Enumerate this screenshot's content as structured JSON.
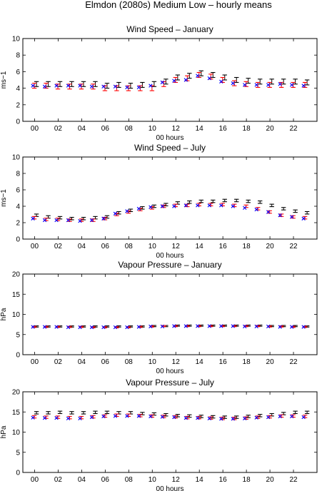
{
  "figure": {
    "title": "Elmdon (2080s) Medium Low – hourly means"
  },
  "colors": {
    "black": "#000000",
    "red": "#ff0000",
    "blue": "#0000ff",
    "purple": "#6a0dad"
  },
  "chart_data": [
    {
      "type": "scatter",
      "title": "Wind Speed – January",
      "xlabel": "00 hours",
      "ylabel": "ms−1",
      "ylim": [
        0,
        10
      ],
      "yticks": [
        0,
        2,
        4,
        6,
        8,
        10
      ],
      "xlim": [
        -1,
        24
      ],
      "xticks": [
        0,
        2,
        4,
        6,
        8,
        10,
        12,
        14,
        16,
        18,
        20,
        22
      ],
      "xticklabels": [
        "00",
        "02",
        "04",
        "06",
        "08",
        "10",
        "12",
        "14",
        "16",
        "18",
        "20",
        "22"
      ],
      "x": [
        0,
        1,
        2,
        3,
        4,
        5,
        6,
        7,
        8,
        9,
        10,
        11,
        12,
        13,
        14,
        15,
        16,
        17,
        18,
        19,
        20,
        21,
        22,
        23
      ],
      "grid": false,
      "series": [
        {
          "marker": "errorbar",
          "color": "#000000",
          "values": [
            4.5,
            4.5,
            4.5,
            4.5,
            4.5,
            4.5,
            4.3,
            4.4,
            4.3,
            4.4,
            4.5,
            4.8,
            5.3,
            5.5,
            5.8,
            5.6,
            5.3,
            5.0,
            4.9,
            4.8,
            4.8,
            4.8,
            4.8,
            4.7
          ],
          "error": [
            0.3,
            0.3,
            0.3,
            0.3,
            0.3,
            0.3,
            0.3,
            0.3,
            0.3,
            0.3,
            0.3,
            0.3,
            0.3,
            0.3,
            0.3,
            0.3,
            0.3,
            0.3,
            0.3,
            0.3,
            0.3,
            0.3,
            0.3,
            0.3
          ]
        },
        {
          "marker": "errorbar",
          "color": "#ff0000",
          "values": [
            4.3,
            4.3,
            4.2,
            4.2,
            4.2,
            4.2,
            4.0,
            4.0,
            4.0,
            4.0,
            4.0,
            4.5,
            5.0,
            5.2,
            5.6,
            5.4,
            5.0,
            4.6,
            4.5,
            4.4,
            4.4,
            4.4,
            4.4,
            4.4
          ],
          "error": [
            0.3,
            0.3,
            0.3,
            0.3,
            0.3,
            0.3,
            0.3,
            0.3,
            0.3,
            0.3,
            0.3,
            0.3,
            0.3,
            0.3,
            0.3,
            0.3,
            0.3,
            0.3,
            0.3,
            0.3,
            0.3,
            0.3,
            0.3,
            0.3
          ]
        },
        {
          "marker": "x",
          "color": "#0000ff",
          "values": [
            4.3,
            4.2,
            4.3,
            4.3,
            4.3,
            4.2,
            4.2,
            4.2,
            4.1,
            4.1,
            4.3,
            4.7,
            4.9,
            5.0,
            5.5,
            5.2,
            4.8,
            4.6,
            4.4,
            4.4,
            4.4,
            4.5,
            4.4,
            4.3
          ]
        }
      ]
    },
    {
      "type": "scatter",
      "title": "Wind Speed – July",
      "xlabel": "00 hours",
      "ylabel": "ms−1",
      "ylim": [
        0,
        10
      ],
      "yticks": [
        0,
        2,
        4,
        6,
        8,
        10
      ],
      "xlim": [
        -1,
        24
      ],
      "xticks": [
        0,
        2,
        4,
        6,
        8,
        10,
        12,
        14,
        16,
        18,
        20,
        22
      ],
      "xticklabels": [
        "00",
        "02",
        "04",
        "06",
        "08",
        "10",
        "12",
        "14",
        "16",
        "18",
        "20",
        "22"
      ],
      "x": [
        0,
        1,
        2,
        3,
        4,
        5,
        6,
        7,
        8,
        9,
        10,
        11,
        12,
        13,
        14,
        15,
        16,
        17,
        18,
        19,
        20,
        21,
        22,
        23
      ],
      "grid": false,
      "series": [
        {
          "marker": "errorbar",
          "color": "#000000",
          "values": [
            2.9,
            2.7,
            2.6,
            2.5,
            2.5,
            2.6,
            2.7,
            3.2,
            3.5,
            3.8,
            4.0,
            4.2,
            4.4,
            4.5,
            4.6,
            4.6,
            4.7,
            4.7,
            4.6,
            4.5,
            4.1,
            3.7,
            3.4,
            3.2
          ],
          "error": [
            0.15,
            0.15,
            0.15,
            0.15,
            0.15,
            0.15,
            0.15,
            0.15,
            0.15,
            0.15,
            0.15,
            0.15,
            0.15,
            0.15,
            0.15,
            0.15,
            0.15,
            0.15,
            0.15,
            0.15,
            0.15,
            0.15,
            0.15,
            0.15
          ]
        },
        {
          "marker": "errorbar",
          "color": "#ff0000",
          "values": [
            2.6,
            2.4,
            2.4,
            2.3,
            2.3,
            2.3,
            2.5,
            3.0,
            3.3,
            3.6,
            3.8,
            4.0,
            4.1,
            4.1,
            4.2,
            4.2,
            4.2,
            4.1,
            4.0,
            3.7,
            3.3,
            2.9,
            2.7,
            2.6
          ],
          "error": [
            0.15,
            0.15,
            0.15,
            0.15,
            0.15,
            0.15,
            0.15,
            0.15,
            0.15,
            0.15,
            0.15,
            0.15,
            0.15,
            0.15,
            0.15,
            0.15,
            0.15,
            0.15,
            0.15,
            0.15,
            0.15,
            0.15,
            0.15,
            0.15
          ]
        },
        {
          "marker": "x",
          "color": "#0000ff",
          "values": [
            2.5,
            2.3,
            2.3,
            2.3,
            2.2,
            2.3,
            2.5,
            3.1,
            3.4,
            3.7,
            3.9,
            4.0,
            4.0,
            4.1,
            4.1,
            4.1,
            4.1,
            4.0,
            3.8,
            3.6,
            3.3,
            2.9,
            2.7,
            2.5
          ]
        }
      ]
    },
    {
      "type": "scatter",
      "title": "Vapour Pressure – January",
      "xlabel": "00 hours",
      "ylabel": "hPa",
      "ylim": [
        0,
        20
      ],
      "yticks": [
        0,
        5,
        10,
        15,
        20
      ],
      "xlim": [
        -1,
        24
      ],
      "xticks": [
        0,
        2,
        4,
        6,
        8,
        10,
        12,
        14,
        16,
        18,
        20,
        22
      ],
      "xticklabels": [
        "00",
        "02",
        "04",
        "06",
        "08",
        "10",
        "12",
        "14",
        "16",
        "18",
        "20",
        "22"
      ],
      "x": [
        0,
        1,
        2,
        3,
        4,
        5,
        6,
        7,
        8,
        9,
        10,
        11,
        12,
        13,
        14,
        15,
        16,
        17,
        18,
        19,
        20,
        21,
        22,
        23
      ],
      "grid": false,
      "series": [
        {
          "marker": "errorbar",
          "color": "#000000",
          "values": [
            7.0,
            7.0,
            7.0,
            7.0,
            7.0,
            7.0,
            7.0,
            7.0,
            7.0,
            7.0,
            7.1,
            7.1,
            7.2,
            7.2,
            7.2,
            7.2,
            7.2,
            7.2,
            7.2,
            7.2,
            7.1,
            7.1,
            7.1,
            7.0
          ],
          "error": [
            0.15,
            0.15,
            0.15,
            0.15,
            0.15,
            0.15,
            0.15,
            0.15,
            0.15,
            0.15,
            0.15,
            0.15,
            0.15,
            0.15,
            0.15,
            0.15,
            0.15,
            0.15,
            0.15,
            0.15,
            0.15,
            0.15,
            0.15,
            0.15
          ]
        },
        {
          "marker": "errorbar",
          "color": "#ff0000",
          "values": [
            6.9,
            6.9,
            6.9,
            6.9,
            6.9,
            6.8,
            6.8,
            6.8,
            6.8,
            6.9,
            7.0,
            7.1,
            7.1,
            7.1,
            7.1,
            7.1,
            7.1,
            7.1,
            7.1,
            7.1,
            7.0,
            7.0,
            6.9,
            6.9
          ],
          "error": [
            0.15,
            0.15,
            0.15,
            0.15,
            0.15,
            0.15,
            0.15,
            0.15,
            0.15,
            0.15,
            0.15,
            0.15,
            0.15,
            0.15,
            0.15,
            0.15,
            0.15,
            0.15,
            0.15,
            0.15,
            0.15,
            0.15,
            0.15,
            0.15
          ]
        },
        {
          "marker": "x",
          "color": "#0000ff",
          "values": [
            6.9,
            6.9,
            6.9,
            6.8,
            6.8,
            6.8,
            6.8,
            6.8,
            6.8,
            6.9,
            7.0,
            7.0,
            7.1,
            7.1,
            7.1,
            7.1,
            7.1,
            7.1,
            7.0,
            7.0,
            7.0,
            6.9,
            6.9,
            6.9
          ]
        }
      ]
    },
    {
      "type": "scatter",
      "title": "Vapour Pressure – July",
      "xlabel": "00 hours",
      "ylabel": "hPa",
      "ylim": [
        0,
        20
      ],
      "yticks": [
        0,
        5,
        10,
        15,
        20
      ],
      "xlim": [
        -1,
        24
      ],
      "xticks": [
        0,
        2,
        4,
        6,
        8,
        10,
        12,
        14,
        16,
        18,
        20,
        22
      ],
      "xticklabels": [
        "00",
        "02",
        "04",
        "06",
        "08",
        "10",
        "12",
        "14",
        "16",
        "18",
        "20",
        "22"
      ],
      "x": [
        0,
        1,
        2,
        3,
        4,
        5,
        6,
        7,
        8,
        9,
        10,
        11,
        12,
        13,
        14,
        15,
        16,
        17,
        18,
        19,
        20,
        21,
        22,
        23
      ],
      "grid": false,
      "series": [
        {
          "marker": "errorbar",
          "color": "#000000",
          "values": [
            14.8,
            14.8,
            14.9,
            14.8,
            14.8,
            14.9,
            14.9,
            14.8,
            14.8,
            14.6,
            14.5,
            14.3,
            14.1,
            14.0,
            13.9,
            13.8,
            13.7,
            13.7,
            13.9,
            14.1,
            14.3,
            14.6,
            14.9,
            14.9
          ],
          "error": [
            0.3,
            0.3,
            0.3,
            0.3,
            0.3,
            0.3,
            0.3,
            0.3,
            0.3,
            0.3,
            0.3,
            0.3,
            0.3,
            0.3,
            0.3,
            0.3,
            0.3,
            0.3,
            0.3,
            0.3,
            0.3,
            0.3,
            0.3,
            0.3
          ]
        },
        {
          "marker": "errorbar",
          "color": "#ff0000",
          "values": [
            13.8,
            13.7,
            13.7,
            13.6,
            13.6,
            13.8,
            14.0,
            14.2,
            14.2,
            14.1,
            14.0,
            13.9,
            13.8,
            13.6,
            13.6,
            13.5,
            13.4,
            13.4,
            13.5,
            13.7,
            13.8,
            14.0,
            14.0,
            13.9
          ],
          "error": [
            0.3,
            0.3,
            0.3,
            0.3,
            0.3,
            0.3,
            0.3,
            0.3,
            0.3,
            0.3,
            0.3,
            0.3,
            0.3,
            0.3,
            0.3,
            0.3,
            0.3,
            0.3,
            0.3,
            0.3,
            0.3,
            0.3,
            0.3,
            0.3
          ]
        },
        {
          "marker": "x",
          "color": "#0000ff",
          "values": [
            13.6,
            13.5,
            13.5,
            13.4,
            13.4,
            13.7,
            13.9,
            14.0,
            14.0,
            14.0,
            13.9,
            13.8,
            13.7,
            13.5,
            13.5,
            13.4,
            13.3,
            13.3,
            13.4,
            13.6,
            13.7,
            13.9,
            13.9,
            13.7
          ]
        }
      ]
    }
  ]
}
